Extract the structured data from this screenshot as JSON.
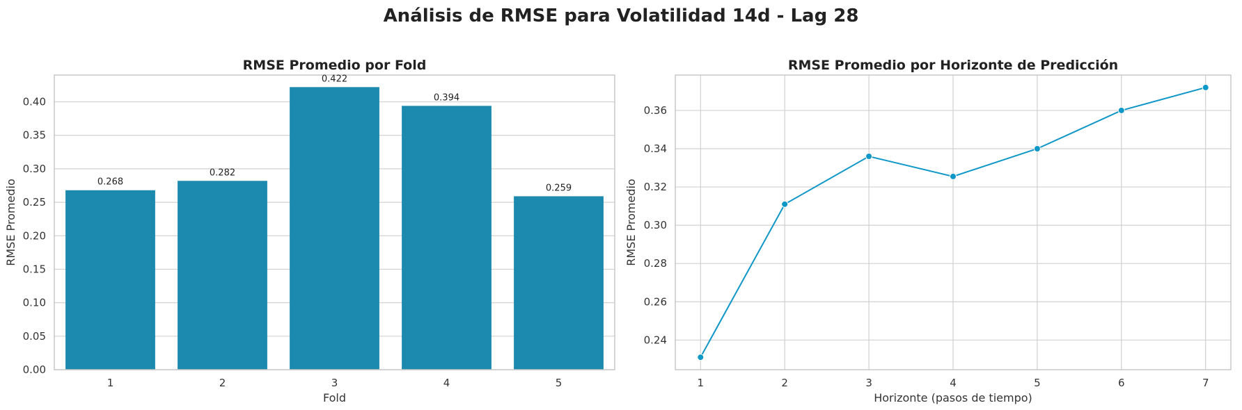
{
  "title": "Análisis de RMSE para Volatilidad 14d - Lag 28",
  "colors": {
    "bar": "#1b8aae",
    "line": "#0f97c8"
  },
  "chart_data": [
    {
      "type": "bar",
      "title": "RMSE Promedio por Fold",
      "xlabel": "Fold",
      "ylabel": "RMSE Promedio",
      "categories": [
        "1",
        "2",
        "3",
        "4",
        "5"
      ],
      "values": [
        0.268,
        0.282,
        0.422,
        0.394,
        0.259
      ],
      "data_labels": [
        "0.268",
        "0.282",
        "0.422",
        "0.394",
        "0.259"
      ],
      "ylim": [
        0,
        0.44
      ],
      "yticks": [
        0.0,
        0.05,
        0.1,
        0.15,
        0.2,
        0.25,
        0.3,
        0.35,
        0.4
      ],
      "ytick_labels": [
        "0.00",
        "0.05",
        "0.10",
        "0.15",
        "0.20",
        "0.25",
        "0.30",
        "0.35",
        "0.40"
      ],
      "grid": true
    },
    {
      "type": "line",
      "title": "RMSE Promedio por Horizonte de Predicción",
      "xlabel": "Horizonte (pasos de tiempo)",
      "ylabel": "RMSE Promedio",
      "x": [
        1,
        2,
        3,
        4,
        5,
        6,
        7
      ],
      "xtick_labels": [
        "1",
        "2",
        "3",
        "4",
        "5",
        "6",
        "7"
      ],
      "y": [
        0.231,
        0.311,
        0.336,
        0.3255,
        0.34,
        0.36,
        0.372
      ],
      "xlim": [
        0.7,
        7.3
      ],
      "ylim": [
        0.2245,
        0.3785
      ],
      "yticks": [
        0.24,
        0.26,
        0.28,
        0.3,
        0.32,
        0.34,
        0.36
      ],
      "ytick_labels": [
        "0.24",
        "0.26",
        "0.28",
        "0.30",
        "0.32",
        "0.34",
        "0.36"
      ],
      "markers": true,
      "grid": true
    }
  ]
}
